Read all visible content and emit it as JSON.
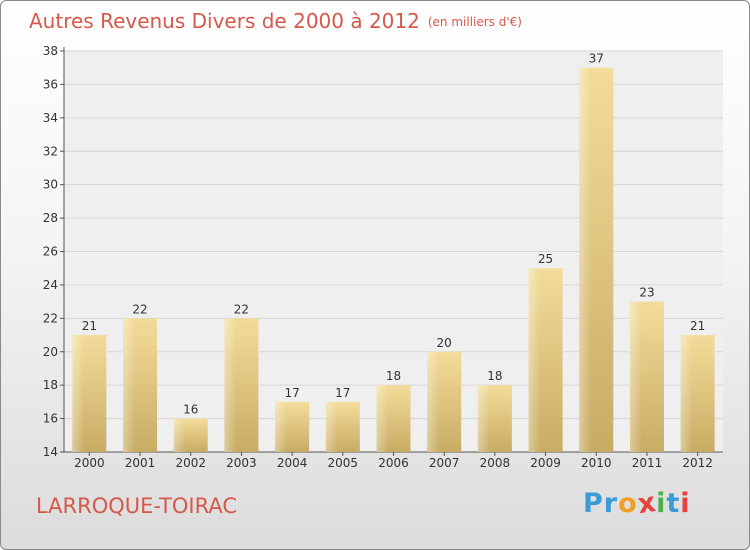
{
  "header": {
    "title": "Autres Revenus Divers de 2000 à 2012",
    "unit": "(en milliers d'€)"
  },
  "footer": {
    "commune": "LARROQUE-TOIRAC",
    "logo_letters": [
      "P",
      "r",
      "o",
      "x",
      "i",
      "t",
      "i"
    ],
    "logo_colors": [
      "#3a9bd6",
      "#3a9bd6",
      "#f0a02a",
      "#e8403a",
      "#4ab14a",
      "#3a9bd6",
      "#e8403a"
    ]
  },
  "colors": {
    "accent": "#d5584a",
    "bar_light": "#f3dc9a",
    "bar_dark": "#c8ac64"
  },
  "chart_data": {
    "type": "bar",
    "title": "Autres Revenus Divers de 2000 à 2012",
    "subtitle": "(en milliers d'€)",
    "categories": [
      "2000",
      "2001",
      "2002",
      "2003",
      "2004",
      "2005",
      "2006",
      "2007",
      "2008",
      "2009",
      "2010",
      "2011",
      "2012"
    ],
    "values": [
      21,
      22,
      16,
      22,
      17,
      17,
      18,
      20,
      18,
      25,
      37,
      23,
      21
    ],
    "ylim": [
      14,
      38
    ],
    "yticks": [
      14,
      16,
      18,
      20,
      22,
      24,
      26,
      28,
      30,
      32,
      34,
      36,
      38
    ],
    "grid": true,
    "legend": "none"
  }
}
